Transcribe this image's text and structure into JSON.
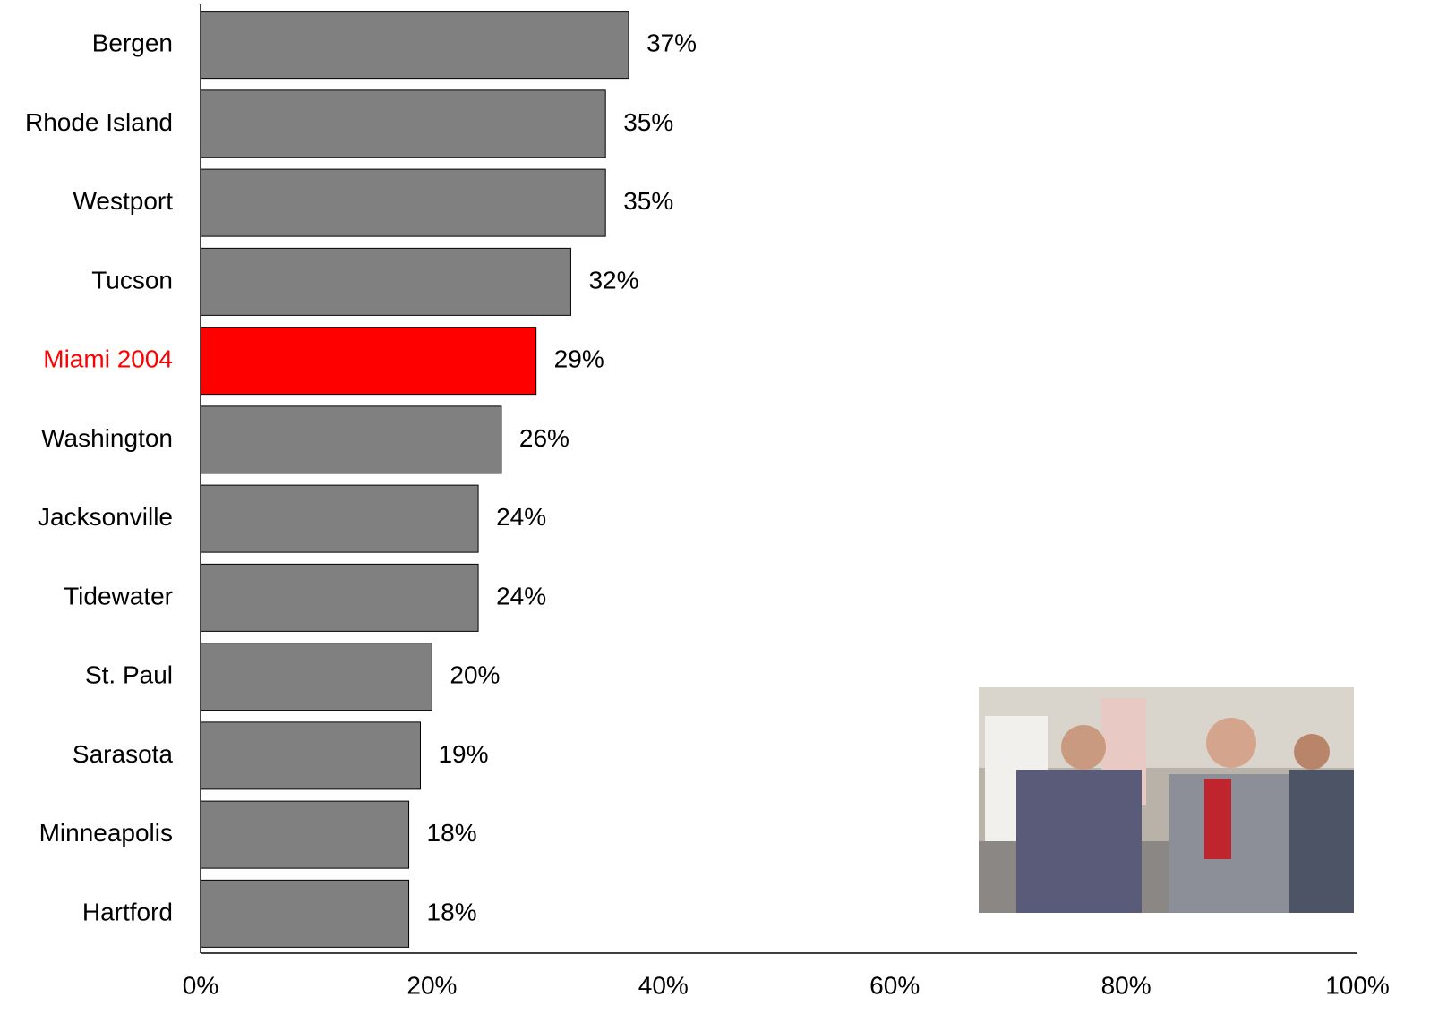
{
  "chart_data": {
    "type": "bar",
    "orientation": "horizontal",
    "categories": [
      "Bergen",
      "Rhode Island",
      "Westport",
      "Tucson",
      "Miami 2004",
      "Washington",
      "Jacksonville",
      "Tidewater",
      "St. Paul",
      "Sarasota",
      "Minneapolis",
      "Hartford"
    ],
    "values": [
      37,
      35,
      35,
      32,
      29,
      26,
      24,
      24,
      20,
      19,
      18,
      18
    ],
    "value_labels": [
      "37%",
      "35%",
      "35%",
      "32%",
      "29%",
      "26%",
      "24%",
      "24%",
      "20%",
      "19%",
      "18%",
      "18%"
    ],
    "colors": [
      "#808080",
      "#808080",
      "#808080",
      "#808080",
      "#ff0000",
      "#808080",
      "#808080",
      "#808080",
      "#808080",
      "#808080",
      "#808080",
      "#808080"
    ],
    "label_colors": [
      "#000000",
      "#000000",
      "#000000",
      "#000000",
      "#ff0000",
      "#000000",
      "#000000",
      "#000000",
      "#000000",
      "#000000",
      "#000000",
      "#000000"
    ],
    "xlim": [
      0,
      100
    ],
    "xticks": [
      {
        "value": 0,
        "label": "0%"
      },
      {
        "value": 20,
        "label": "20%"
      },
      {
        "value": 40,
        "label": "40%"
      },
      {
        "value": 60,
        "label": "60%"
      },
      {
        "value": 80,
        "label": "80%"
      },
      {
        "value": 100,
        "label": "100%"
      }
    ],
    "grid": false
  }
}
